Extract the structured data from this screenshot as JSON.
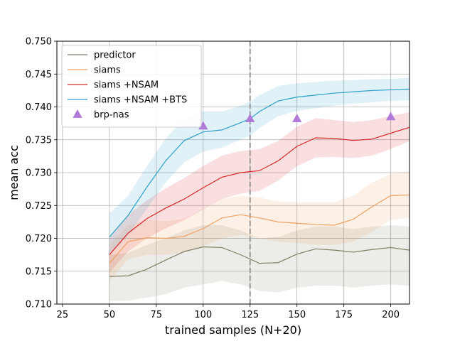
{
  "chart_data": {
    "type": "line",
    "title": "",
    "xlabel": "trained samples (N+20)",
    "ylabel": "mean acc",
    "xlim": [
      22,
      210
    ],
    "ylim": [
      0.71,
      0.75
    ],
    "xticks": [
      25,
      50,
      75,
      100,
      125,
      150,
      175,
      200
    ],
    "yticks": [
      0.71,
      0.715,
      0.72,
      0.725,
      0.73,
      0.735,
      0.74,
      0.745,
      0.75
    ],
    "ytick_labels": [
      "0.710",
      "0.715",
      "0.720",
      "0.725",
      "0.730",
      "0.735",
      "0.740",
      "0.745",
      "0.750"
    ],
    "grid": true,
    "vline": {
      "x": 125,
      "style": "dashed",
      "color": "#999999"
    },
    "legend_position": "top-left",
    "series": [
      {
        "name": "predictor",
        "color": "#7f7f66",
        "x": [
          50,
          60,
          70,
          80,
          90,
          100,
          110,
          120,
          130,
          140,
          150,
          160,
          170,
          180,
          190,
          200,
          210
        ],
        "values": [
          0.7142,
          0.7143,
          0.7153,
          0.7167,
          0.718,
          0.7187,
          0.7186,
          0.7175,
          0.7162,
          0.7163,
          0.7176,
          0.7184,
          0.7182,
          0.7179,
          0.7183,
          0.7186,
          0.7182
        ],
        "band_lower": [
          0.7105,
          0.7105,
          0.711,
          0.7115,
          0.7125,
          0.713,
          0.7135,
          0.713,
          0.712,
          0.7118,
          0.7125,
          0.7128,
          0.7128,
          0.7125,
          0.7128,
          0.713,
          0.7128
        ],
        "band_upper": [
          0.7175,
          0.7178,
          0.719,
          0.72,
          0.7212,
          0.722,
          0.722,
          0.7212,
          0.72,
          0.7202,
          0.7212,
          0.7218,
          0.7218,
          0.7214,
          0.7218,
          0.722,
          0.7218
        ]
      },
      {
        "name": "siams",
        "color": "#f0a060",
        "x": [
          50,
          60,
          70,
          80,
          90,
          100,
          110,
          120,
          130,
          140,
          150,
          160,
          170,
          180,
          190,
          200,
          210
        ],
        "values": [
          0.7162,
          0.7195,
          0.7201,
          0.72,
          0.7203,
          0.7215,
          0.7231,
          0.7236,
          0.7231,
          0.7225,
          0.7223,
          0.7221,
          0.722,
          0.7229,
          0.7248,
          0.7265,
          0.7266
        ],
        "band_lower": [
          0.7135,
          0.7168,
          0.7175,
          0.7175,
          0.7178,
          0.7188,
          0.72,
          0.7205,
          0.72,
          0.7195,
          0.7193,
          0.719,
          0.719,
          0.7195,
          0.721,
          0.7228,
          0.7232
        ],
        "band_upper": [
          0.719,
          0.722,
          0.7228,
          0.7226,
          0.723,
          0.7245,
          0.726,
          0.7265,
          0.7262,
          0.7256,
          0.7255,
          0.7255,
          0.7255,
          0.7265,
          0.7285,
          0.7298,
          0.7302
        ]
      },
      {
        "name": "siams +NSAM",
        "color": "#d62728",
        "x": [
          50,
          60,
          70,
          80,
          90,
          100,
          110,
          120,
          130,
          140,
          150,
          160,
          170,
          180,
          190,
          200,
          210
        ],
        "values": [
          0.7175,
          0.7208,
          0.723,
          0.7246,
          0.726,
          0.7277,
          0.7293,
          0.73,
          0.7303,
          0.7318,
          0.734,
          0.7353,
          0.7352,
          0.7349,
          0.7351,
          0.736,
          0.7369
        ],
        "band_lower": [
          0.7148,
          0.718,
          0.72,
          0.7215,
          0.7228,
          0.7244,
          0.726,
          0.7268,
          0.7272,
          0.7288,
          0.731,
          0.7323,
          0.7324,
          0.7322,
          0.7326,
          0.7336,
          0.7348
        ],
        "band_upper": [
          0.7202,
          0.7236,
          0.7258,
          0.7276,
          0.7292,
          0.731,
          0.7326,
          0.7333,
          0.7336,
          0.7348,
          0.737,
          0.7383,
          0.738,
          0.7377,
          0.738,
          0.7386,
          0.7392
        ]
      },
      {
        "name": "siams +NSAM +BTS",
        "color": "#2ca0c8",
        "x": [
          50,
          60,
          70,
          80,
          90,
          100,
          110,
          120,
          125,
          130,
          140,
          150,
          160,
          170,
          180,
          190,
          200,
          210
        ],
        "values": [
          0.7202,
          0.7235,
          0.7278,
          0.7318,
          0.7349,
          0.7362,
          0.7365,
          0.7376,
          0.7382,
          0.7393,
          0.7409,
          0.7415,
          0.7418,
          0.7421,
          0.7423,
          0.7425,
          0.7426,
          0.7427
        ],
        "band_lower": [
          0.7175,
          0.7205,
          0.7245,
          0.7285,
          0.7316,
          0.7332,
          0.7338,
          0.735,
          0.7356,
          0.7368,
          0.7386,
          0.7394,
          0.7398,
          0.7402,
          0.7405,
          0.7407,
          0.7409,
          0.741
        ],
        "band_upper": [
          0.7238,
          0.7265,
          0.731,
          0.7352,
          0.7382,
          0.7393,
          0.7393,
          0.7402,
          0.7408,
          0.7418,
          0.7432,
          0.7436,
          0.7438,
          0.744,
          0.7441,
          0.7442,
          0.7443,
          0.7444
        ]
      }
    ],
    "markers": {
      "name": "brp-nas",
      "color": "#b07ad8",
      "symbol": "triangle",
      "x": [
        100,
        125,
        150,
        200
      ],
      "values": [
        0.7371,
        0.7382,
        0.7382,
        0.7385
      ]
    }
  }
}
